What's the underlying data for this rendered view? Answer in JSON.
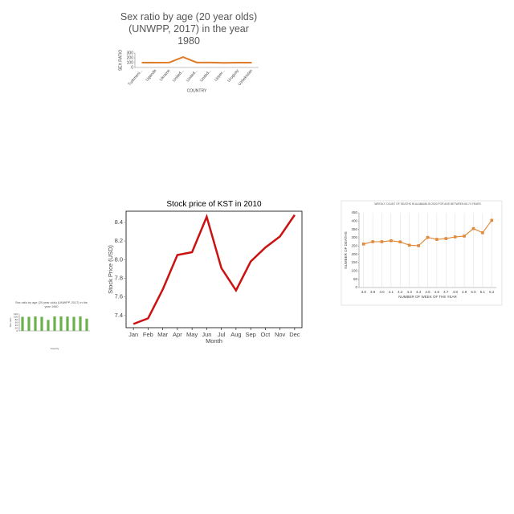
{
  "chart_data": [
    {
      "type": "line",
      "title": "Sex ratio by age (20 year olds) (UNWPP, 2017) in the year 1980",
      "x_label": "COUNTRY",
      "y_label": "SEX RATIO",
      "categories": [
        "Turkmeni...",
        "Uganda",
        "Ukraine",
        "United...",
        "United...",
        "United...",
        "Upper...",
        "Uruguay",
        "Uzbekistan"
      ],
      "values": [
        100,
        100,
        103,
        215,
        103,
        102,
        95,
        100,
        100
      ],
      "color": "#e07b2a",
      "ylim": [
        0,
        300
      ],
      "yticks": [
        0,
        100,
        200,
        300
      ]
    },
    {
      "type": "bar",
      "title": "Sex ratio by age (20 year olds) (UNWPP, 2017) in the year 1960",
      "x_label": "Country",
      "y_label": "Sex ratio",
      "categories": [
        null,
        null,
        null,
        null,
        null,
        null,
        null,
        null,
        null,
        null,
        null
      ],
      "values": [
        100,
        100,
        103,
        100,
        78,
        103,
        103,
        102,
        100,
        103,
        87
      ],
      "color": "#6ab04c",
      "ylim": [
        0,
        120
      ],
      "yticks": [
        0,
        20,
        40,
        60,
        80,
        100,
        120
      ]
    },
    {
      "type": "line",
      "title": "Stock price of KST in 2010",
      "x_label": "Month",
      "y_label": "Stock Price (USD)",
      "categories": [
        "Jan",
        "Feb",
        "Mar",
        "Apr",
        "May",
        "Jun",
        "Jul",
        "Aug",
        "Sep",
        "Oct",
        "Nov",
        "Dec"
      ],
      "values": [
        7.31,
        7.37,
        7.68,
        8.05,
        8.08,
        8.46,
        7.91,
        7.67,
        7.98,
        8.13,
        8.25,
        8.48
      ],
      "color": "#cc1111",
      "ylim": [
        7.27,
        8.52
      ],
      "yticks": [
        7.4,
        7.6,
        7.8,
        {
          "value": 8.0,
          "label": "8.0"
        },
        8.2,
        8.4
      ]
    },
    {
      "type": "line",
      "title": "WEEKLY COUNT OF DEATHS IN ALABAMA IN 2020 FOR AGE BETWEEN 65-74 YEARS",
      "x_label": "NUMBER OF WEEK OF THE YEAR",
      "y_label": "NUMBER OF DEATHS",
      "categories": [
        "3.8",
        "3.9",
        "4.0",
        "4.1",
        "4.2",
        "4.3",
        "4.4",
        "4.5",
        "4.6",
        "4.7",
        "4.8",
        "4.9",
        "5.0",
        "5.1",
        "5.2"
      ],
      "values": [
        262,
        276,
        276,
        282,
        275,
        255,
        252,
        302,
        290,
        295,
        305,
        310,
        355,
        330,
        405
      ],
      "color": "#e08a3c",
      "marker": "square",
      "grid": "x",
      "ylim": [
        0,
        450
      ],
      "yticks": [
        0,
        50,
        100,
        150,
        200,
        250,
        300,
        350,
        400,
        450
      ]
    }
  ]
}
